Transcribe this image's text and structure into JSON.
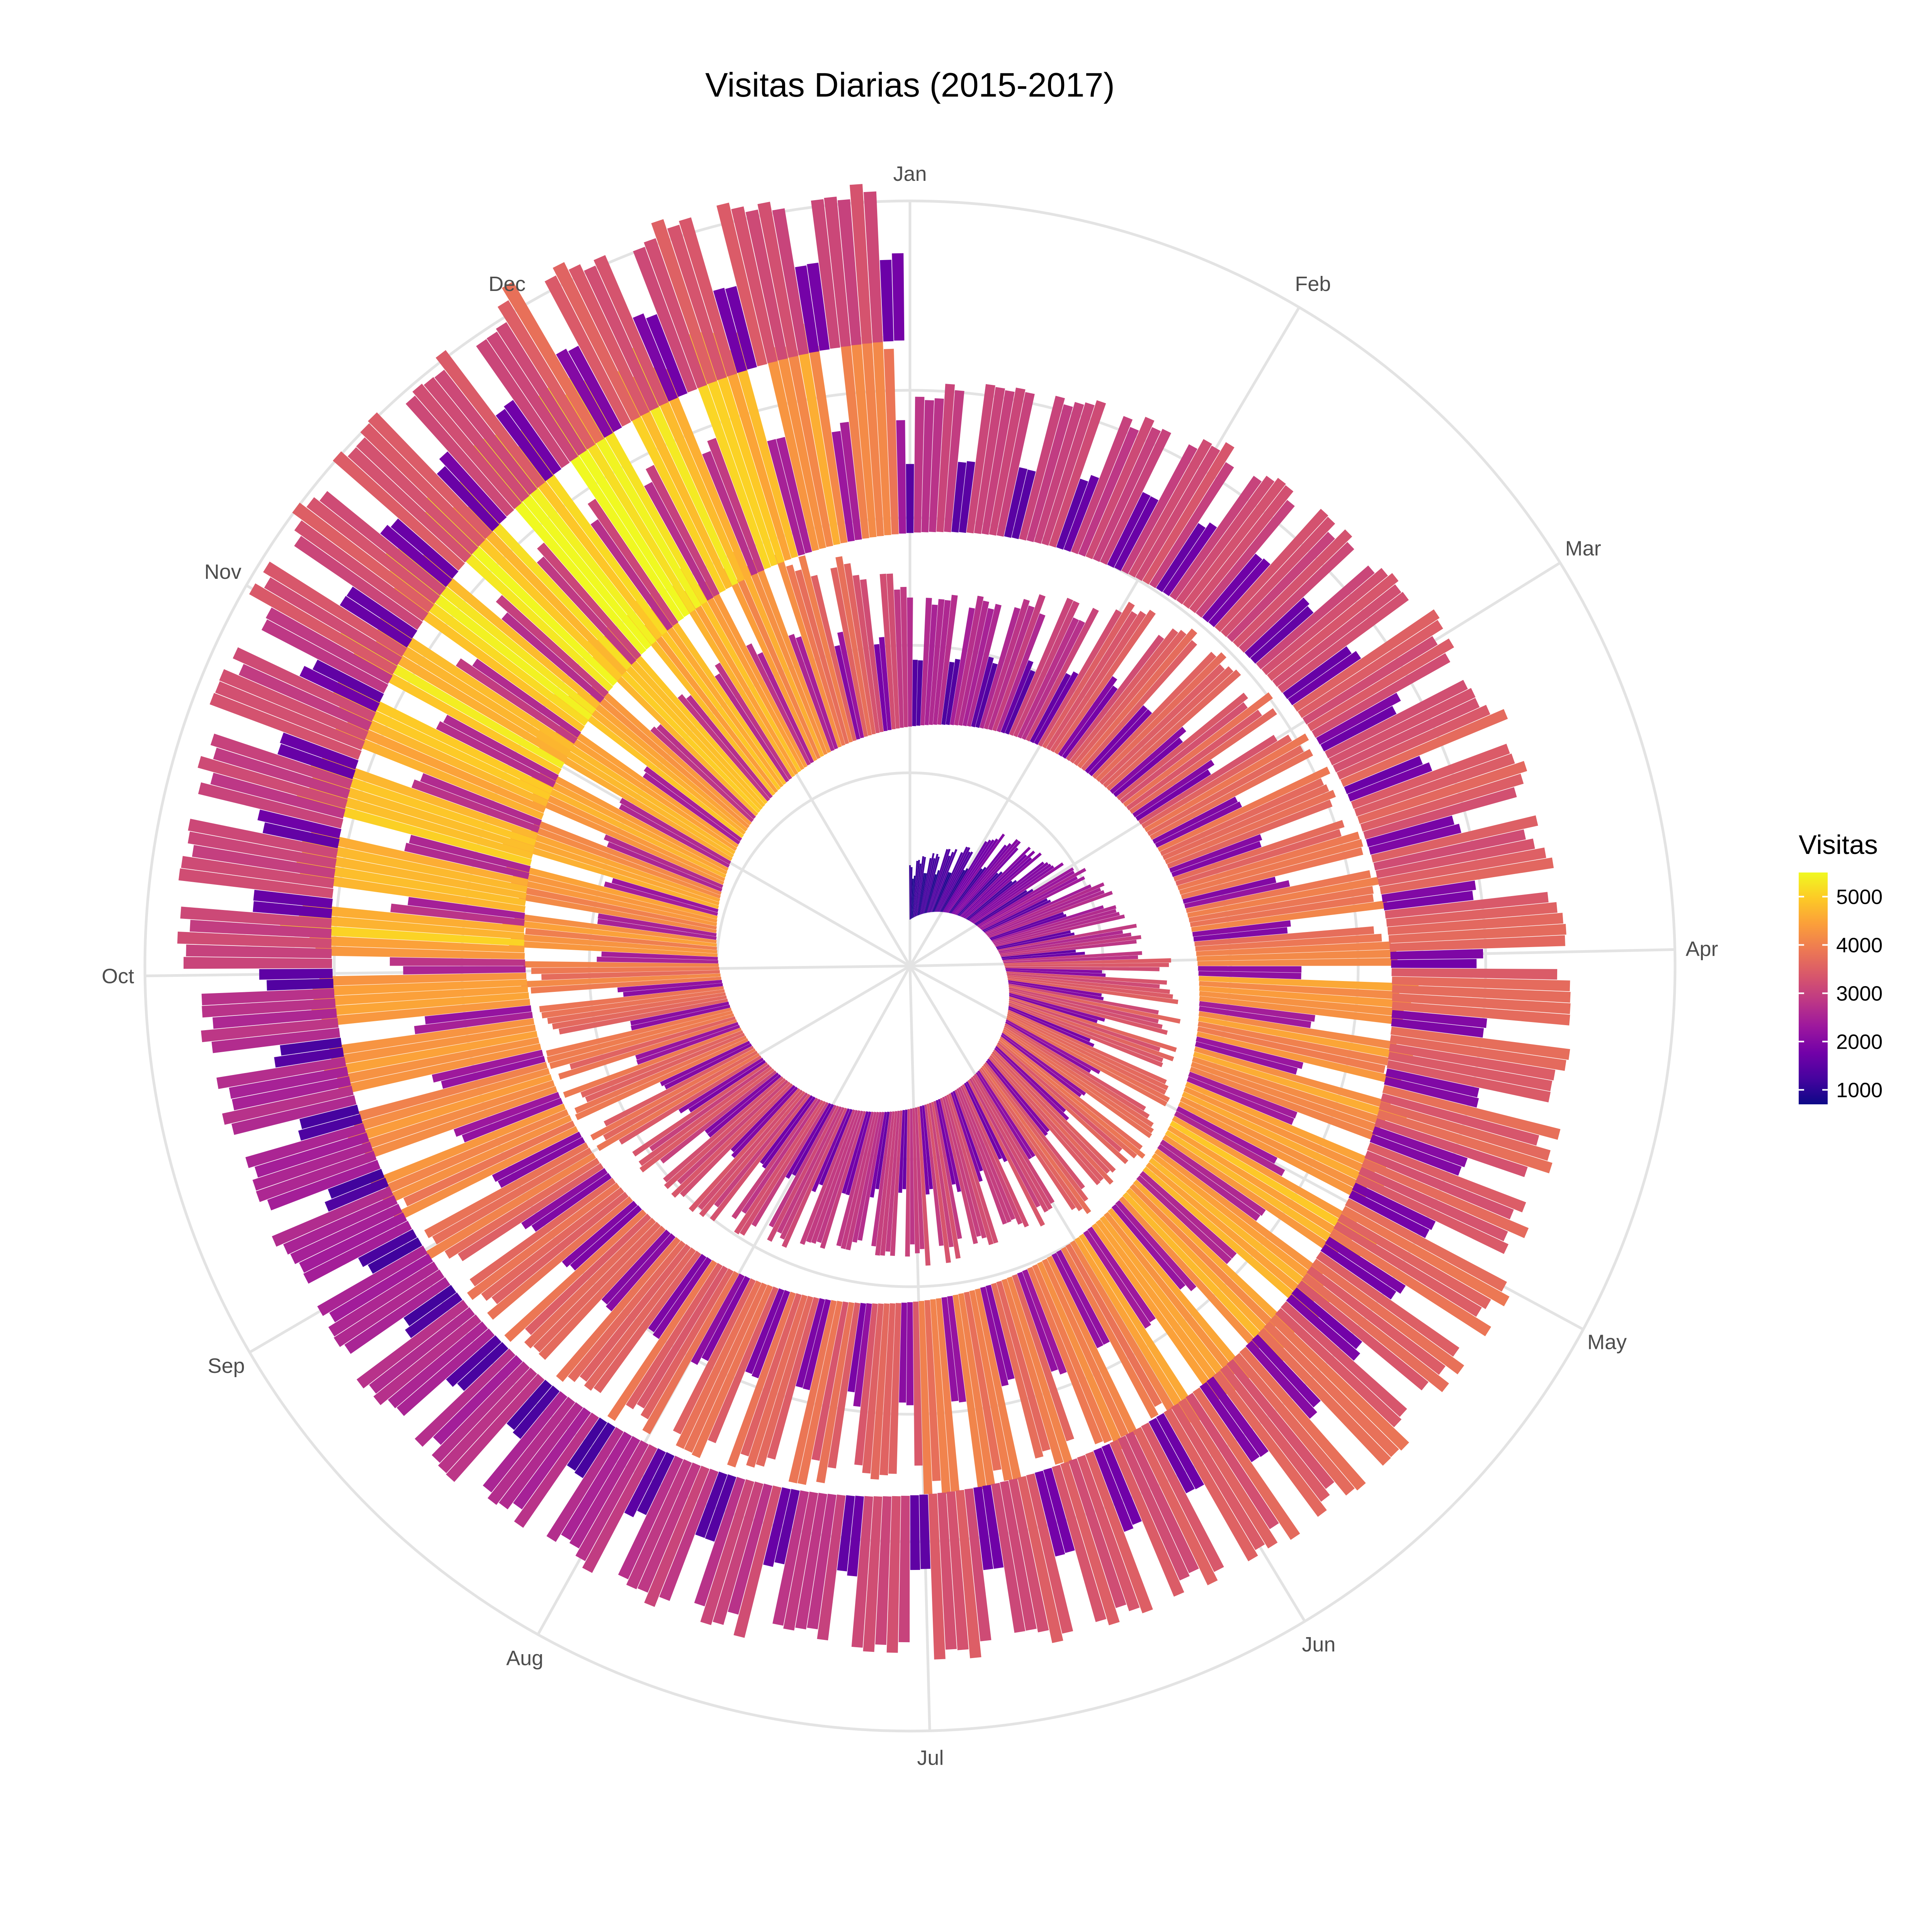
{
  "chart_data": {
    "type": "bar",
    "coordinate_system": "polar-spiral",
    "title": "Visitas Diarias (2015-2017)",
    "angular_axis_labels": [
      "Jan",
      "Feb",
      "Mar",
      "Apr",
      "May",
      "Jun",
      "Jul",
      "Aug",
      "Sep",
      "Oct",
      "Nov",
      "Dec"
    ],
    "grid": true,
    "legend": {
      "title": "Visitas",
      "placement": "right",
      "ticks": [
        1000,
        2000,
        3000,
        4000,
        5000
      ],
      "range": [
        700,
        5500
      ],
      "colors": [
        "#0d0887",
        "#46039f",
        "#7201a8",
        "#9c179e",
        "#bd3786",
        "#d8576b",
        "#ed7953",
        "#fb9f3a",
        "#fdca26",
        "#f0f921"
      ]
    },
    "series": [
      {
        "start_date": "2015-01-01",
        "end_date": "2015-12-31",
        "weekly_pattern": "weekday high, weekend low",
        "monthly_weekday_visits": [
          1100,
          1800,
          2400,
          3300,
          3700,
          3200,
          2900,
          3000,
          3600,
          4200,
          4600,
          4800
        ],
        "monthly_weekend_visits": [
          800,
          1100,
          1500,
          1900,
          2100,
          1900,
          1700,
          1800,
          2100,
          2400,
          2600,
          2700
        ]
      },
      {
        "start_date": "2016-01-01",
        "end_date": "2016-12-31",
        "weekly_pattern": "weekday high, weekend low",
        "monthly_weekday_visits": [
          2500,
          3400,
          3700,
          4200,
          4600,
          4000,
          3600,
          3600,
          3900,
          4700,
          5000,
          5400
        ],
        "monthly_weekend_visits": [
          1300,
          1900,
          2000,
          2200,
          2500,
          2200,
          2000,
          2000,
          2100,
          2600,
          2800,
          3000
        ]
      },
      {
        "start_date": "2017-01-01",
        "end_date": "2017-12-31",
        "weekly_pattern": "weekday high, weekend low",
        "monthly_weekday_visits": [
          2900,
          3200,
          3400,
          3500,
          3600,
          3400,
          3100,
          2700,
          2400,
          3000,
          3200,
          3500
        ],
        "monthly_weekend_visits": [
          1500,
          1700,
          1800,
          1900,
          1900,
          1800,
          1600,
          1300,
          1200,
          1600,
          1700,
          1900
        ]
      }
    ]
  }
}
